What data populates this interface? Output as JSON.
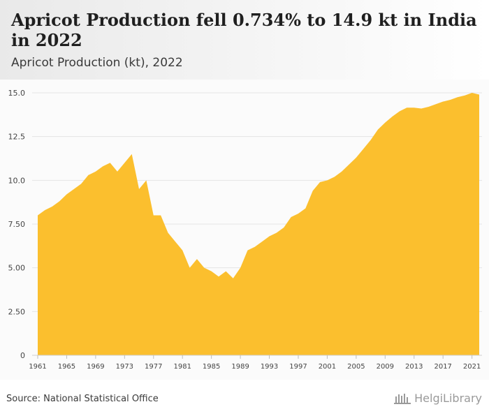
{
  "header": {
    "title": "Apricot Production fell 0.734% to 14.9 kt in India in 2022",
    "subtitle": "Apricot Production (kt), 2022"
  },
  "footer": {
    "source": "Source: National Statistical Office",
    "logo_text": "HelgiLibrary"
  },
  "colors": {
    "area_fill": "#fbbf2e",
    "grid": "#e4e4e4",
    "tick_text": "#444444"
  },
  "chart_data": {
    "type": "area",
    "title": "Apricot Production (kt), 2022",
    "xlabel": "",
    "ylabel": "",
    "ylim": [
      0,
      15.0
    ],
    "grid": true,
    "yticks": [
      "0",
      "2.50",
      "5.00",
      "7.50",
      "10.0",
      "12.5",
      "15.0"
    ],
    "ytick_values": [
      0,
      2.5,
      5.0,
      7.5,
      10.0,
      12.5,
      15.0
    ],
    "xticks": [
      "1961",
      "1965",
      "1969",
      "1973",
      "1977",
      "1981",
      "1985",
      "1989",
      "1993",
      "1997",
      "2001",
      "2005",
      "2009",
      "2013",
      "2017",
      "2021"
    ],
    "x": [
      1961,
      1962,
      1963,
      1964,
      1965,
      1966,
      1967,
      1968,
      1969,
      1970,
      1971,
      1972,
      1973,
      1974,
      1975,
      1976,
      1977,
      1978,
      1979,
      1980,
      1981,
      1982,
      1983,
      1984,
      1985,
      1986,
      1987,
      1988,
      1989,
      1990,
      1991,
      1992,
      1993,
      1994,
      1995,
      1996,
      1997,
      1998,
      1999,
      2000,
      2001,
      2002,
      2003,
      2004,
      2005,
      2006,
      2007,
      2008,
      2009,
      2010,
      2011,
      2012,
      2013,
      2014,
      2015,
      2016,
      2017,
      2018,
      2019,
      2020,
      2021,
      2022
    ],
    "series": [
      {
        "values": [
          8.0,
          8.3,
          8.5,
          8.8,
          9.2,
          9.5,
          9.8,
          10.3,
          10.5,
          10.8,
          11.0,
          10.5,
          11.0,
          11.5,
          9.5,
          10.0,
          8.0,
          8.0,
          7.0,
          6.5,
          6.0,
          5.0,
          5.5,
          5.0,
          4.8,
          4.5,
          4.8,
          4.4,
          5.0,
          6.0,
          6.2,
          6.5,
          6.8,
          7.0,
          7.3,
          7.9,
          8.1,
          8.4,
          9.4,
          9.9,
          10.0,
          10.2,
          10.5,
          10.9,
          11.3,
          11.8,
          12.3,
          12.9,
          13.3,
          13.65,
          13.95,
          14.15,
          14.15,
          14.1,
          14.2,
          14.35,
          14.5,
          14.6,
          14.75,
          14.85,
          15.0,
          14.9
        ]
      }
    ]
  }
}
